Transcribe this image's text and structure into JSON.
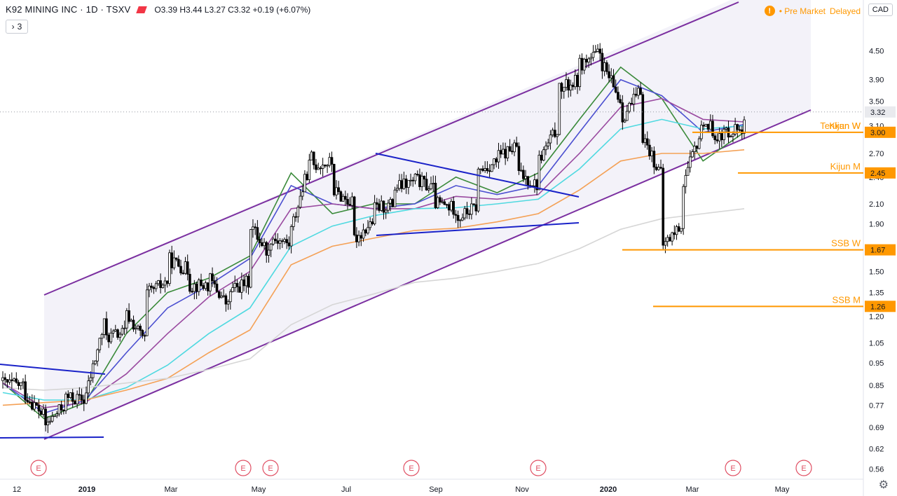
{
  "header": {
    "symbol": "K92 MINING INC · 1D · TSXV",
    "open_label": "O",
    "open": "3.39",
    "high_label": "H",
    "high": "3.44",
    "low_label": "L",
    "low": "3.27",
    "close_label": "C",
    "close": "3.32",
    "change": "+0.19 (+6.07%)"
  },
  "indicators_toggle": {
    "arrow": "›",
    "count": "3"
  },
  "market_status": {
    "icon": "!",
    "text": "Pre Market",
    "delay": "Delayed"
  },
  "currency": "CAD",
  "settings_icon": "⚙",
  "colors": {
    "up": "#ffffff",
    "down": "#000000",
    "wick": "#000000",
    "channel": "#7b2fa0",
    "channel_fill": "#f3f2f9",
    "triangle": "#1a22c8",
    "level": "#ff9800",
    "ema_fast": "#3a8a3a",
    "ema_mid": "#4b4fd0",
    "ema_slow": "#9a4aa0",
    "ema_cyan": "#4fd9e0",
    "ema_orange": "#f4a156",
    "ema_gray": "#d6d6d6",
    "earnings": "#e05064"
  },
  "chart_data": {
    "type": "candlestick",
    "scale": "log",
    "ylim": [
      0.54,
      5.7
    ],
    "y_ticks": [
      "4.50",
      "3.90",
      "3.50",
      "3.10",
      "2.70",
      "2.40",
      "2.10",
      "1.90",
      "1.67",
      "1.50",
      "1.35",
      "1.20",
      "1.05",
      "0.95",
      "0.85",
      "0.77",
      "0.69",
      "0.62",
      "0.56"
    ],
    "x_ticks": [
      "12",
      "2019",
      "Mar",
      "May",
      "Jul",
      "Sep",
      "Nov",
      "2020",
      "Mar",
      "May"
    ],
    "last_price": "3.32",
    "price_path": [
      [
        0.87,
        0.86
      ],
      [
        0.85,
        0.82
      ],
      [
        0.73,
        0.69
      ],
      [
        0.77,
        0.8
      ],
      [
        0.79,
        0.8
      ],
      [
        1.19,
        1.08
      ],
      [
        1.11,
        1.21
      ],
      [
        1.05,
        1.34
      ],
      [
        1.43,
        1.6
      ],
      [
        1.51,
        1.4
      ],
      [
        1.4,
        1.45
      ],
      [
        1.25,
        1.36
      ],
      [
        1.43,
        1.9
      ],
      [
        1.62,
        1.78
      ],
      [
        1.71,
        1.85
      ],
      [
        2.66,
        2.55
      ],
      [
        2.58,
        2.25
      ],
      [
        2.1,
        1.75
      ],
      [
        1.93,
        2.05
      ],
      [
        2.1,
        2.27
      ],
      [
        2.35,
        2.38
      ],
      [
        2.25,
        2.11
      ],
      [
        2.05,
        1.95
      ],
      [
        2.07,
        2.45
      ],
      [
        2.6,
        2.65
      ],
      [
        2.8,
        2.45
      ],
      [
        2.3,
        2.6
      ],
      [
        3.1,
        3.7
      ],
      [
        3.9,
        4.2
      ],
      [
        4.45,
        4.3
      ],
      [
        3.5,
        3.2
      ],
      [
        3.7,
        3.0
      ],
      [
        2.4,
        1.7
      ],
      [
        1.9,
        2.3
      ],
      [
        3.1,
        3.2
      ],
      [
        2.85,
        3.0
      ],
      [
        3.1,
        3.32
      ]
    ],
    "series": [
      {
        "name": "EMA fast",
        "values": [
          0.86,
          0.72,
          0.78,
          1.1,
          1.35,
          1.45,
          1.62,
          2.45,
          2.0,
          2.1,
          2.1,
          2.4,
          2.22,
          2.45,
          3.2,
          4.15,
          3.55,
          2.6,
          3.0
        ]
      },
      {
        "name": "EMA mid",
        "values": [
          0.86,
          0.74,
          0.79,
          1.0,
          1.25,
          1.4,
          1.6,
          2.3,
          2.1,
          2.05,
          2.1,
          2.3,
          2.2,
          2.3,
          3.0,
          3.9,
          3.6,
          3.0,
          3.12
        ]
      },
      {
        "name": "EMA slow",
        "values": [
          0.86,
          0.76,
          0.78,
          0.9,
          1.1,
          1.32,
          1.5,
          2.05,
          2.1,
          2.05,
          2.05,
          2.18,
          2.15,
          2.2,
          2.7,
          3.4,
          3.55,
          3.2,
          3.16
        ]
      },
      {
        "name": "EMA cyan",
        "values": [
          0.82,
          0.79,
          0.79,
          0.84,
          0.94,
          1.1,
          1.25,
          1.7,
          1.88,
          1.98,
          2.05,
          2.06,
          2.1,
          2.15,
          2.5,
          3.05,
          3.2,
          3.05,
          3.1
        ]
      },
      {
        "name": "EMA 200",
        "values": [
          0.77,
          0.78,
          0.79,
          0.83,
          0.88,
          1.0,
          1.12,
          1.55,
          1.7,
          1.77,
          1.84,
          1.86,
          1.92,
          2.0,
          2.25,
          2.6,
          2.7,
          2.7,
          2.75
        ]
      },
      {
        "name": "EMA long",
        "values": [
          0.84,
          0.83,
          0.84,
          0.86,
          0.88,
          0.92,
          0.97,
          1.15,
          1.27,
          1.34,
          1.42,
          1.45,
          1.5,
          1.56,
          1.68,
          1.85,
          1.95,
          2.0,
          2.05
        ]
      }
    ],
    "levels": [
      {
        "label": "Tenkan W",
        "value": 3.0,
        "badge": "3.00"
      },
      {
        "label": "Kijun W",
        "value": 3.0,
        "badge": ""
      },
      {
        "label": "Kijun M",
        "value": 2.45,
        "badge": "2.45"
      },
      {
        "label": "SSB W",
        "value": 1.67,
        "badge": "1.67"
      },
      {
        "label": "SSB M",
        "value": 1.26,
        "badge": "1.26"
      }
    ],
    "earnings_marker": "E",
    "earnings_count": 8
  }
}
